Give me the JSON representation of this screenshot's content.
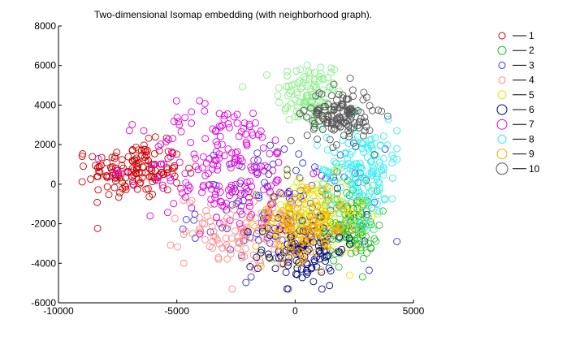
{
  "chart_data": {
    "type": "scatter",
    "title": "Two-dimensional Isomap embedding (with neighborhood graph).",
    "xlabel": "",
    "ylabel": "",
    "xlim": [
      -10000,
      5000
    ],
    "ylim": [
      -6000,
      8000
    ],
    "x_ticks": [
      -10000,
      -5000,
      0,
      5000
    ],
    "y_ticks": [
      -6000,
      -4000,
      -2000,
      0,
      2000,
      4000,
      6000,
      8000
    ],
    "grid": false,
    "legend_position": "outside-right",
    "marker": "open-circle",
    "series": [
      {
        "name": "1",
        "color": "#cc0000",
        "cluster": {
          "cx": -6800,
          "cy": 700,
          "sx": 1000,
          "sy": 700,
          "n": 150
        }
      },
      {
        "name": "2",
        "color": "#22bb22",
        "cluster": {
          "cx": 2300,
          "cy": -2100,
          "sx": 600,
          "sy": 900,
          "n": 140
        }
      },
      {
        "name": "3",
        "color": "#3333cc",
        "cluster": {
          "cx": -300,
          "cy": -1200,
          "sx": 1900,
          "sy": 1500,
          "n": 130
        }
      },
      {
        "name": "4",
        "color": "#ff8888",
        "cluster": {
          "cx": -2000,
          "cy": -2300,
          "sx": 1300,
          "sy": 900,
          "n": 130
        }
      },
      {
        "name": "5",
        "color": "#e5e500",
        "cluster": {
          "cx": 800,
          "cy": -1600,
          "sx": 1100,
          "sy": 1000,
          "n": 150
        }
      },
      {
        "name": "6",
        "color": "#000080",
        "cluster": {
          "cx": 300,
          "cy": -3300,
          "sx": 900,
          "sy": 900,
          "n": 110
        }
      },
      {
        "name": "7",
        "color": "#dd00dd",
        "cluster": {
          "cx": -3000,
          "cy": 900,
          "sx": 1700,
          "sy": 1600,
          "n": 200
        }
      },
      {
        "name": "8",
        "color": "#33eeee",
        "cluster": {
          "cx": 2800,
          "cy": 700,
          "sx": 800,
          "sy": 1300,
          "n": 160
        }
      },
      {
        "name": "9",
        "color": "#ffaa00",
        "cluster": {
          "cx": 300,
          "cy": -2200,
          "sx": 1000,
          "sy": 800,
          "n": 120
        }
      },
      {
        "name": "10",
        "color": "#555555",
        "cluster": {
          "cx": 1900,
          "cy": 3500,
          "sx": 700,
          "sy": 700,
          "n": 140
        }
      }
    ],
    "extra_series_colors": {
      "light-green": "#88ee88"
    },
    "extra_cluster": {
      "color": "#88ee88",
      "cx": 600,
      "cy": 4500,
      "sx": 700,
      "sy": 900,
      "n": 110
    }
  }
}
